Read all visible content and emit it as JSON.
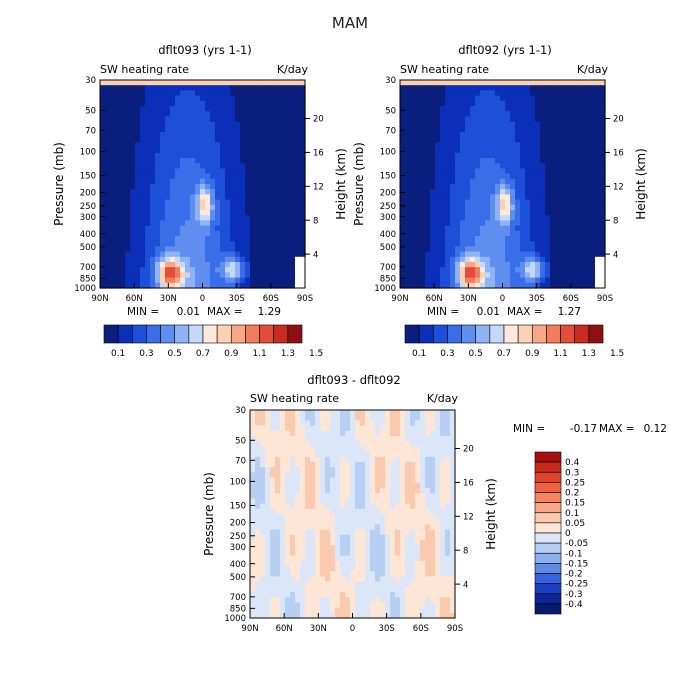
{
  "page": {
    "title": "MAM"
  },
  "units": {
    "pressure": "mb",
    "height": "km",
    "rate": "K/day"
  },
  "chart_data": [
    {
      "type": "heatmap",
      "title": "dflt093 (yrs 1-1)",
      "subtitle_left": "SW heating rate",
      "subtitle_right": "K/day",
      "ylabel": "Pressure (mb)",
      "y2label": "Height (km)",
      "x_ticks": [
        "90N",
        "60N",
        "30N",
        "0",
        "30S",
        "60S",
        "90S"
      ],
      "y_ticks": [
        "30",
        "50",
        "70",
        "100",
        "150",
        "200",
        "250",
        "300",
        "400",
        "500",
        "700",
        "850",
        "1000"
      ],
      "y2_ticks": [
        "20",
        "16",
        "12",
        "8",
        "4"
      ],
      "min_label": "MIN =",
      "min_value": "0.01",
      "max_label": "MAX =",
      "max_value": "1.29",
      "colorbar_labels": [
        "0.1",
        "0.3",
        "0.5",
        "0.7",
        "0.9",
        "1.1",
        "1.3",
        "1.5"
      ],
      "colorbar_colors": [
        "#0a1f7d",
        "#0b2fb8",
        "#1d4fd8",
        "#3a6ee8",
        "#5f8ef0",
        "#8fb3f5",
        "#c4d9f9",
        "#fbe9dc",
        "#fcd0b3",
        "#f7a785",
        "#f27d5c",
        "#e24e3a",
        "#c72c1f",
        "#8f1010"
      ],
      "colorbar_range": [
        0,
        1.6
      ],
      "max_peak": 1.29
    },
    {
      "type": "heatmap",
      "title": "dflt092 (yrs 1-1)",
      "subtitle_left": "SW heating rate",
      "subtitle_right": "K/day",
      "ylabel": "Pressure (mb)",
      "y2label": "Height (km)",
      "x_ticks": [
        "90N",
        "60N",
        "30N",
        "0",
        "30S",
        "60S",
        "90S"
      ],
      "y_ticks": [
        "30",
        "50",
        "70",
        "100",
        "150",
        "200",
        "250",
        "300",
        "400",
        "500",
        "700",
        "850",
        "1000"
      ],
      "y2_ticks": [
        "20",
        "16",
        "12",
        "8",
        "4"
      ],
      "min_label": "MIN =",
      "min_value": "0.01",
      "max_label": "MAX =",
      "max_value": "1.27",
      "colorbar_labels": [
        "0.1",
        "0.3",
        "0.5",
        "0.7",
        "0.9",
        "1.1",
        "1.3",
        "1.5"
      ],
      "colorbar_colors": [
        "#0a1f7d",
        "#0b2fb8",
        "#1d4fd8",
        "#3a6ee8",
        "#5f8ef0",
        "#8fb3f5",
        "#c4d9f9",
        "#fbe9dc",
        "#fcd0b3",
        "#f7a785",
        "#f27d5c",
        "#e24e3a",
        "#c72c1f",
        "#8f1010"
      ],
      "colorbar_range": [
        0,
        1.6
      ],
      "max_peak": 1.27
    },
    {
      "type": "heatmap",
      "title": "dflt093 - dflt092",
      "subtitle_left": "SW heating rate",
      "subtitle_right": "K/day",
      "ylabel": "Pressure (mb)",
      "y2label": "Height (km)",
      "x_ticks": [
        "90N",
        "60N",
        "30N",
        "0",
        "30S",
        "60S",
        "90S"
      ],
      "y_ticks": [
        "30",
        "50",
        "70",
        "100",
        "150",
        "200",
        "250",
        "300",
        "400",
        "500",
        "700",
        "850",
        "1000"
      ],
      "y2_ticks": [
        "20",
        "16",
        "12",
        "8",
        "4"
      ],
      "min_label": "MIN =",
      "min_value": "-0.17",
      "max_label": "MAX =",
      "max_value": "0.12",
      "colorbar_labels": [
        "0.4",
        "0.3",
        "0.25",
        "0.2",
        "0.15",
        "0.1",
        "0.05",
        "0",
        "-0.05",
        "-0.1",
        "-0.15",
        "-0.2",
        "-0.25",
        "-0.3",
        "-0.4"
      ],
      "colorbar_colors": [
        "#a50f0f",
        "#c82a1e",
        "#e0442c",
        "#f0623f",
        "#f78560",
        "#f9a885",
        "#fbcaae",
        "#fde6d6",
        "#dbe7f8",
        "#b6cff3",
        "#8cb0ee",
        "#5f8ae6",
        "#3463dc",
        "#1b3fc4",
        "#0c2596",
        "#061a70"
      ],
      "colorbar_range": [
        -0.4,
        0.4
      ]
    }
  ]
}
